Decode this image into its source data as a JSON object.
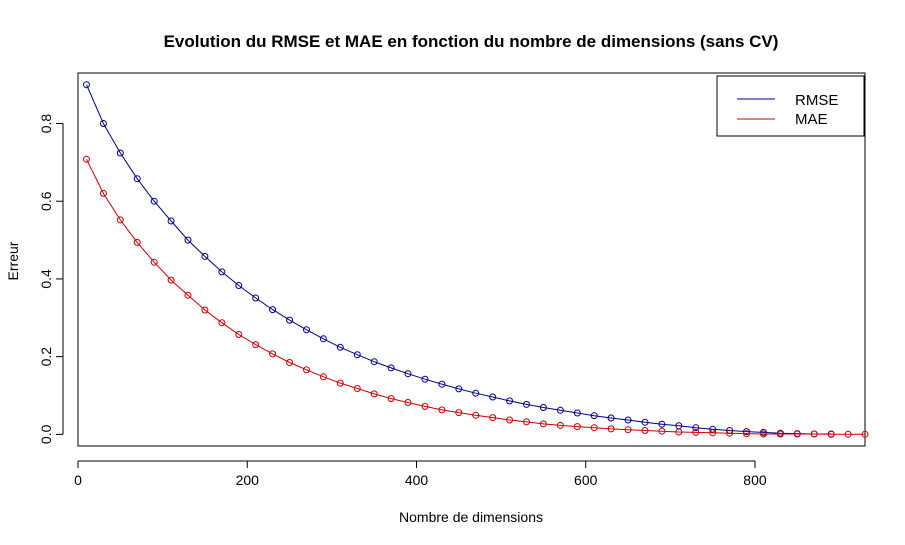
{
  "chart_data": {
    "type": "line",
    "title": "Evolution du RMSE et MAE en fonction du nombre de dimensions (sans CV)",
    "xlabel": "Nombre de dimensions",
    "ylabel": "Erreur",
    "xlim": [
      0,
      930
    ],
    "ylim": [
      -0.03,
      0.93
    ],
    "xticks": [
      0,
      200,
      400,
      600,
      800
    ],
    "xtick_labels": [
      "0",
      "200",
      "400",
      "600",
      "800"
    ],
    "yticks": [
      0.0,
      0.2,
      0.4,
      0.6,
      0.8
    ],
    "ytick_labels": [
      "0.0",
      "0.2",
      "0.4",
      "0.6",
      "0.8"
    ],
    "grid": false,
    "legend_position": "top-right",
    "series": [
      {
        "name": "RMSE",
        "color": "#00008B",
        "x": [
          10,
          30,
          50,
          70,
          90,
          110,
          130,
          150,
          170,
          190,
          210,
          230,
          250,
          270,
          290,
          310,
          330,
          350,
          370,
          390,
          410,
          430,
          450,
          470,
          490,
          510,
          530,
          550,
          570,
          590,
          610,
          630,
          650,
          670,
          690,
          710,
          730,
          750,
          770,
          790,
          810,
          830,
          850,
          870,
          890
        ],
        "values": [
          0.9,
          0.8,
          0.724,
          0.658,
          0.6,
          0.549,
          0.5,
          0.458,
          0.418,
          0.383,
          0.351,
          0.321,
          0.294,
          0.269,
          0.246,
          0.224,
          0.205,
          0.187,
          0.171,
          0.156,
          0.142,
          0.129,
          0.117,
          0.106,
          0.096,
          0.086,
          0.077,
          0.069,
          0.062,
          0.055,
          0.048,
          0.042,
          0.037,
          0.031,
          0.026,
          0.022,
          0.017,
          0.013,
          0.01,
          0.007,
          0.005,
          0.003,
          0.002,
          0.001,
          0.001
        ]
      },
      {
        "name": "MAE",
        "color": "#CC0000",
        "x": [
          10,
          30,
          50,
          70,
          90,
          110,
          130,
          150,
          170,
          190,
          210,
          230,
          250,
          270,
          290,
          310,
          330,
          350,
          370,
          390,
          410,
          430,
          450,
          470,
          490,
          510,
          530,
          550,
          570,
          590,
          610,
          630,
          650,
          670,
          690,
          710,
          730,
          750,
          770,
          790,
          810,
          830,
          850,
          870,
          890,
          910,
          930
        ],
        "values": [
          0.708,
          0.62,
          0.552,
          0.494,
          0.443,
          0.397,
          0.358,
          0.32,
          0.287,
          0.257,
          0.231,
          0.207,
          0.185,
          0.166,
          0.148,
          0.132,
          0.118,
          0.104,
          0.092,
          0.082,
          0.072,
          0.063,
          0.056,
          0.049,
          0.043,
          0.037,
          0.032,
          0.027,
          0.023,
          0.02,
          0.017,
          0.014,
          0.012,
          0.01,
          0.008,
          0.006,
          0.005,
          0.004,
          0.003,
          0.002,
          0.001,
          0.001,
          0.001,
          0.001,
          0.0,
          0.0,
          0.0
        ]
      }
    ]
  }
}
